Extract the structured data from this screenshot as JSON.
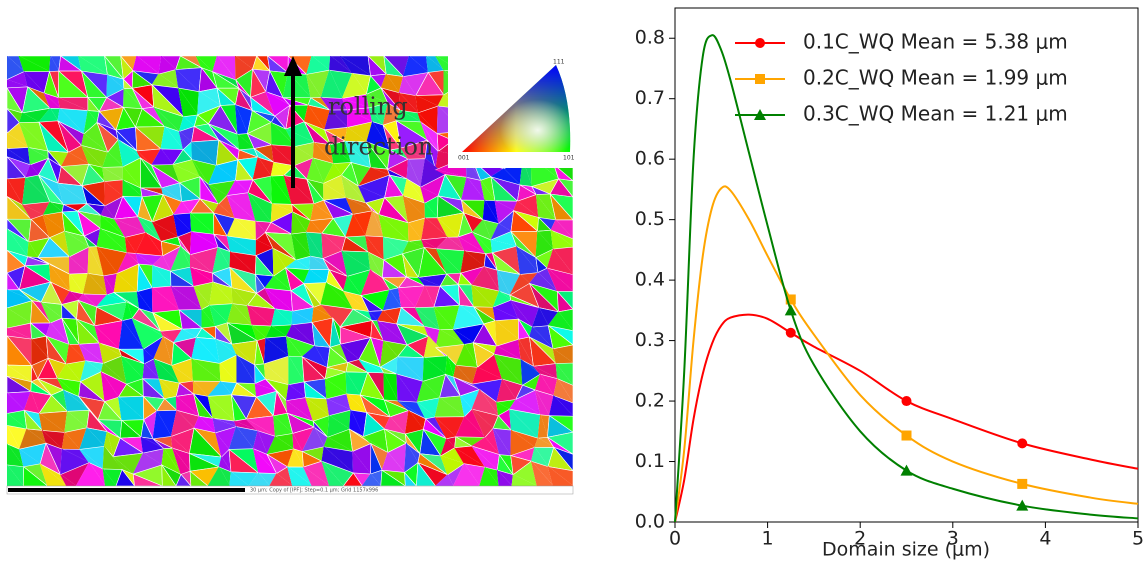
{
  "chart_data": {
    "type": "line",
    "xlabel": "Domain size (μm)",
    "xlim": [
      0,
      5
    ],
    "ylim": [
      0,
      0.85
    ],
    "xticks": [
      0,
      1,
      2,
      3,
      4,
      5
    ],
    "yticks": [
      {
        "value": 0,
        "label": "0.0"
      },
      0.1,
      0.2,
      0.3,
      0.4,
      0.5,
      0.6,
      0.7,
      0.8
    ],
    "legend": "upper right",
    "x": [
      0,
      0.1,
      0.2,
      0.3,
      0.4,
      0.5,
      0.6,
      0.8,
      1.0,
      1.25,
      1.5,
      2,
      2.5,
      3,
      3.75,
      4.5,
      5
    ],
    "series": [
      {
        "name": "0.1C_WQ Mean = 5.38 μm",
        "color": "#ff0000",
        "marker": "circle",
        "values": [
          0,
          0.07,
          0.17,
          0.245,
          0.295,
          0.325,
          0.338,
          0.343,
          0.336,
          0.313,
          0.29,
          0.25,
          0.2,
          0.17,
          0.13,
          0.103,
          0.088
        ]
      },
      {
        "name": "0.2C_WQ Mean = 1.99 μm",
        "color": "#ffa500",
        "marker": "square",
        "values": [
          0,
          0.12,
          0.3,
          0.44,
          0.52,
          0.552,
          0.548,
          0.5,
          0.44,
          0.368,
          0.31,
          0.21,
          0.143,
          0.1,
          0.063,
          0.04,
          0.03
        ]
      },
      {
        "name": "0.3C_WQ Mean = 1.21 μm",
        "color": "#008000",
        "marker": "triangle",
        "values": [
          0,
          0.25,
          0.6,
          0.77,
          0.805,
          0.78,
          0.73,
          0.61,
          0.49,
          0.35,
          0.26,
          0.15,
          0.085,
          0.055,
          0.027,
          0.012,
          0.006
        ]
      }
    ]
  },
  "ebsd_map": {
    "annotation_lines": [
      "rolling",
      "direction"
    ],
    "ipf_key": {
      "top": "111",
      "left": "001",
      "right": "101"
    },
    "scale_bar_text": "30 µm; Copy of [IPF]; Step=0.1 µm; Grid 1157x996"
  }
}
